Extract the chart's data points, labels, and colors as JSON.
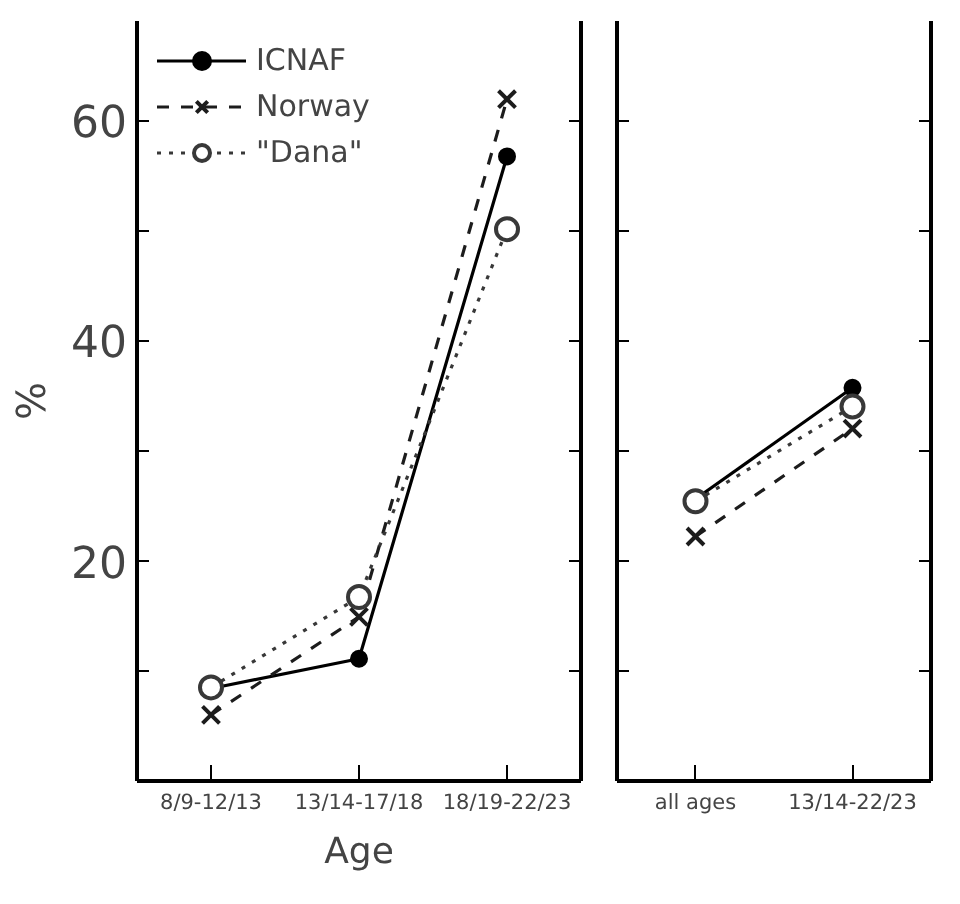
{
  "chart_data": [
    {
      "type": "line",
      "xlabel": "Age",
      "ylabel": "%",
      "categories": [
        "8/9-12/13",
        "13/14-17/18",
        "18/19-22/23"
      ],
      "series": [
        {
          "name": "ICNAF",
          "color": "#000000",
          "marker": "circle",
          "line_style": "solid",
          "values": [
            8.4,
            11.1,
            56.7
          ]
        },
        {
          "name": "Norway",
          "color": "#1c1c1c",
          "marker": "cross",
          "line_style": "dashed",
          "values": [
            6.0,
            14.9,
            61.9
          ]
        },
        {
          "name": "\"Dana\"",
          "color": "#383838",
          "marker": "circle",
          "line_style": "dotted",
          "values": [
            8.5,
            16.7,
            50.1
          ]
        }
      ],
      "ylim": [
        0,
        69
      ],
      "yticks": [
        {
          "value": 10,
          "label": null
        },
        20,
        {
          "value": 30,
          "label": null
        },
        40,
        {
          "value": 50,
          "label": null
        },
        60
      ],
      "grid": false,
      "legend": "top left"
    },
    {
      "type": "line",
      "categories": [
        "all ages",
        "13/14-22/23"
      ],
      "series": [
        {
          "color": "#000000",
          "marker": "circle",
          "line_style": "solid",
          "values": [
            25.6,
            35.7
          ]
        },
        {
          "color": "#1c1c1c",
          "marker": "cross",
          "line_style": "dashed",
          "values": [
            22.2,
            32.0
          ]
        },
        {
          "color": "#383838",
          "marker": "circle",
          "line_style": "dotted",
          "values": [
            25.4,
            34.0
          ]
        }
      ],
      "ylim": [
        0,
        69
      ],
      "yticks": [
        {
          "value": 10,
          "label": null
        },
        {
          "value": 20,
          "label": null
        },
        {
          "value": 30,
          "label": null
        },
        {
          "value": 40,
          "label": null
        },
        {
          "value": 50,
          "label": null
        },
        {
          "value": 60,
          "label": null
        }
      ],
      "grid": false,
      "tick_labels": "x"
    }
  ]
}
